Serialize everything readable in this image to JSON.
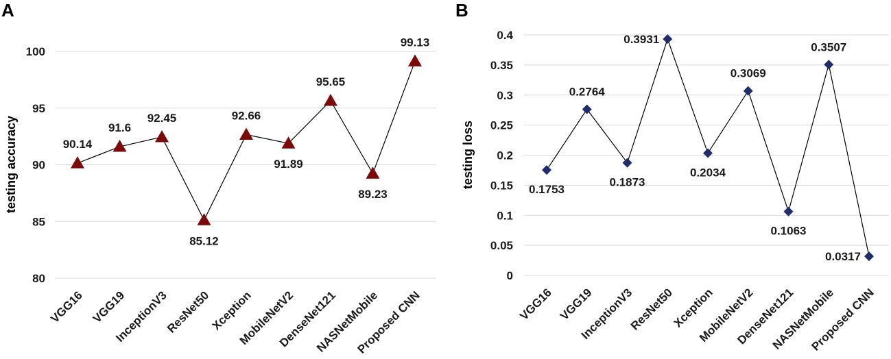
{
  "chart_data": [
    {
      "panel": "A",
      "type": "line",
      "title": "",
      "xlabel": "",
      "ylabel": "testing accuracy",
      "ylim": [
        80,
        100
      ],
      "yticks": [
        "80",
        "85",
        "90",
        "95",
        "100"
      ],
      "grid": true,
      "marker": "triangle",
      "marker_color": "#7b0a0a",
      "categories": [
        "VGG16",
        "VGG19",
        "InceptionV3",
        "ResNet50",
        "Xception",
        "MobileNetV2",
        "DenseNet121",
        "NASNetMobile",
        "Proposed CNN"
      ],
      "values": [
        90.14,
        91.6,
        92.45,
        85.12,
        92.66,
        91.89,
        95.65,
        89.23,
        99.13
      ],
      "labels": [
        "90.14",
        "91.6",
        "92.45",
        "85.12",
        "92.66",
        "91.89",
        "95.65",
        "89.23",
        "99.13"
      ]
    },
    {
      "panel": "B",
      "type": "line",
      "title": "",
      "xlabel": "",
      "ylabel": "testing loss",
      "ylim": [
        0,
        0.4
      ],
      "yticks": [
        "0",
        "0.05",
        "0.1",
        "0.15",
        "0.2",
        "0.25",
        "0.3",
        "0.35",
        "0.4"
      ],
      "grid": true,
      "marker": "diamond",
      "marker_color": "#1f2d6b",
      "categories": [
        "VGG16",
        "VGG19",
        "InceptionV3",
        "ResNet50",
        "Xception",
        "MobileNetV2",
        "DenseNet121",
        "NASNetMobile",
        "Proposed CNN"
      ],
      "values": [
        0.1753,
        0.2764,
        0.1873,
        0.3931,
        0.2034,
        0.3069,
        0.1063,
        0.3507,
        0.0317
      ],
      "labels": [
        "0.1753",
        "0.2764",
        "0.1873",
        "0.3931",
        "0.2034",
        "0.3069",
        "0.1063",
        "0.3507",
        "0.0317"
      ]
    }
  ]
}
